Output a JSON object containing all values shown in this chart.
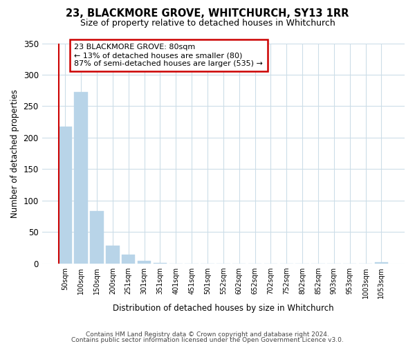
{
  "title": "23, BLACKMORE GROVE, WHITCHURCH, SY13 1RR",
  "subtitle": "Size of property relative to detached houses in Whitchurch",
  "xlabel": "Distribution of detached houses by size in Whitchurch",
  "ylabel": "Number of detached properties",
  "bin_labels": [
    "50sqm",
    "100sqm",
    "150sqm",
    "200sqm",
    "251sqm",
    "301sqm",
    "351sqm",
    "401sqm",
    "451sqm",
    "501sqm",
    "552sqm",
    "602sqm",
    "652sqm",
    "702sqm",
    "752sqm",
    "802sqm",
    "852sqm",
    "903sqm",
    "953sqm",
    "1003sqm",
    "1053sqm"
  ],
  "bar_values": [
    218,
    272,
    84,
    29,
    14,
    4,
    1,
    0,
    0,
    0,
    0,
    0,
    0,
    0,
    0,
    0,
    0,
    0,
    0,
    0,
    2
  ],
  "bar_color": "#b8d4e8",
  "highlight_line_color": "#cc0000",
  "ylim": [
    0,
    350
  ],
  "yticks": [
    0,
    50,
    100,
    150,
    200,
    250,
    300,
    350
  ],
  "annotation_text_line1": "23 BLACKMORE GROVE: 80sqm",
  "annotation_text_line2": "← 13% of detached houses are smaller (80)",
  "annotation_text_line3": "87% of semi-detached houses are larger (535) →",
  "footnote1": "Contains HM Land Registry data © Crown copyright and database right 2024.",
  "footnote2": "Contains public sector information licensed under the Open Government Licence v3.0.",
  "background_color": "#ffffff",
  "grid_color": "#ccdde8"
}
